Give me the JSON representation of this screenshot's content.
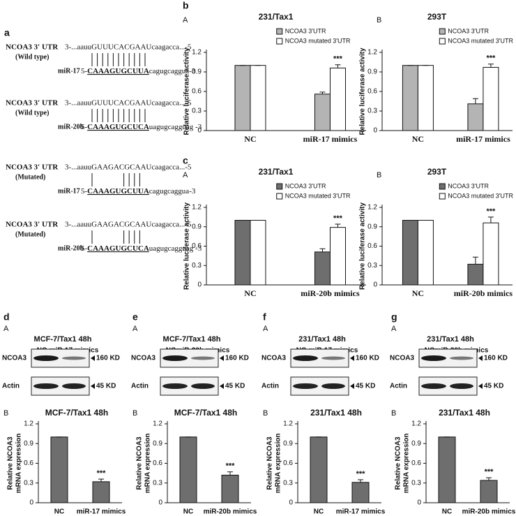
{
  "sequences": {
    "panel": "a",
    "items": [
      {
        "utr": "NCOA3 3' UTR",
        "variant": "(Wild type)",
        "target": "3-...aauuGUUUCACGAAUcaagacca...-5",
        "mirna": "miR-17",
        "seq_start": "5-",
        "seq_core": "CAAAGUGCUUA",
        "seq_end": "cagugcaggua-3"
      },
      {
        "utr": "NCOA3 3' UTR",
        "variant": "(Wild type)",
        "target": "3-...aauuGUUUCACGAAUcaagacca...-5",
        "mirna": "miR-20b",
        "seq_start": "5-",
        "seq_core": "CAAAGUGCUCA",
        "seq_end": "uagugcagguag -3"
      },
      {
        "utr": "NCOA3 3' UTR",
        "variant": "(Mutated)",
        "target": "3-...aauuGAAGACGCAAUcaagacca...-5",
        "mirna": "miR-17",
        "seq_start": "5-",
        "seq_core": "CAAAGUGCUUA",
        "seq_end": "cagugcaggua-3"
      },
      {
        "utr": "NCOA3 3' UTR",
        "variant": "(Mutated)",
        "target": "3-...aauuGAAGACGCAAUcaagacca...-5",
        "mirna": "miR-20b",
        "seq_start": "5-",
        "seq_core": "CAAAGUGCUCA",
        "seq_end": "uagugcagguag -3"
      }
    ]
  },
  "blots": [
    {
      "panel": "d",
      "sub": "A",
      "title": "MCF-7/Tax1 48h",
      "lanes": [
        "NC",
        "miR-17 mimics"
      ],
      "rows": [
        {
          "name": "NCOA3",
          "size": "160 KD"
        },
        {
          "name": "Actin",
          "size": "45 KD"
        }
      ]
    },
    {
      "panel": "e",
      "sub": "A",
      "title": "MCF-7/Tax1 48h",
      "lanes": [
        "NC",
        "miR-20b mimics"
      ],
      "rows": [
        {
          "name": "NCOA3",
          "size": "160 KD"
        },
        {
          "name": "Actin",
          "size": "45 KD"
        }
      ]
    },
    {
      "panel": "f",
      "sub": "A",
      "title": "231/Tax1 48h",
      "lanes": [
        "NC",
        "miR-17 mimics"
      ],
      "rows": [
        {
          "name": "NCOA3",
          "size": "160 KD"
        },
        {
          "name": "Actin",
          "size": "45 KD"
        }
      ]
    },
    {
      "panel": "g",
      "sub": "A",
      "title": "231/Tax1 48h",
      "lanes": [
        "NC",
        "miR-20b mimics"
      ],
      "rows": [
        {
          "name": "NCOA3",
          "size": "160 KD"
        },
        {
          "name": "Actin",
          "size": "45 KD"
        }
      ]
    }
  ],
  "chart_data": [
    {
      "type": "bar",
      "panel": "b",
      "sub": "A",
      "title": "231/Tax1",
      "ylabel": [
        "Relative  luciferase activity"
      ],
      "categories": [
        "NC",
        "miR-17 mimics"
      ],
      "series": [
        {
          "name": "NCOA3 3'UTR",
          "color": "#b4b4b4",
          "values": [
            1,
            0.56
          ],
          "errors": [
            0,
            0.03
          ]
        },
        {
          "name": "NCOA3 mutated 3'UTR",
          "color": "#ffffff",
          "values": [
            1,
            0.96
          ],
          "errors": [
            0,
            0.05
          ]
        }
      ],
      "annotation": "***",
      "ylim": [
        0,
        1.2
      ],
      "yticks": [
        0,
        0.3,
        0.6,
        0.9,
        1.2
      ]
    },
    {
      "type": "bar",
      "sub": "B",
      "title": "293T",
      "ylabel": [
        "Relative  luciferase activity"
      ],
      "categories": [
        "NC",
        "miR-17 mimics"
      ],
      "series": [
        {
          "name": "NCOA3 3'UTR",
          "color": "#b4b4b4",
          "values": [
            1,
            0.41
          ],
          "errors": [
            0,
            0.08
          ]
        },
        {
          "name": "NCOA3 mutated 3'UTR",
          "color": "#ffffff",
          "values": [
            1,
            0.97
          ],
          "errors": [
            0,
            0.05
          ]
        }
      ],
      "annotation": "***",
      "ylim": [
        0,
        1.2
      ],
      "yticks": [
        0,
        0.3,
        0.6,
        0.9,
        1.2
      ]
    },
    {
      "type": "bar",
      "panel": "c",
      "sub": "A",
      "title": "231/Tax1",
      "ylabel": [
        "Relative  luciferase activity"
      ],
      "categories": [
        "NC",
        "miR-20b mimics"
      ],
      "series": [
        {
          "name": "NCOA3 3'UTR",
          "color": "#6e6e6e",
          "values": [
            1,
            0.51
          ],
          "errors": [
            0,
            0.05
          ]
        },
        {
          "name": "NCOA3 mutated 3'UTR",
          "color": "#ffffff",
          "values": [
            1,
            0.89
          ],
          "errors": [
            0,
            0.05
          ]
        }
      ],
      "annotation": "***",
      "ylim": [
        0,
        1.2
      ],
      "yticks": [
        0,
        0.3,
        0.6,
        0.9,
        1.2
      ]
    },
    {
      "type": "bar",
      "sub": "B",
      "title": "293T",
      "ylabel": [
        "Relative  luciferase activity"
      ],
      "categories": [
        "NC",
        "miR-20b mimics"
      ],
      "series": [
        {
          "name": "NCOA3 3'UTR",
          "color": "#6e6e6e",
          "values": [
            1,
            0.32
          ],
          "errors": [
            0,
            0.11
          ]
        },
        {
          "name": "NCOA3 mutated 3'UTR",
          "color": "#ffffff",
          "values": [
            1,
            0.96
          ],
          "errors": [
            0,
            0.09
          ]
        }
      ],
      "annotation": "***",
      "ylim": [
        0,
        1.2
      ],
      "yticks": [
        0,
        0.3,
        0.6,
        0.9,
        1.2
      ]
    },
    {
      "type": "bar",
      "sub": "B",
      "title": "MCF-7/Tax1 48h",
      "ylabel": [
        "Relative NCOA3",
        "mRNA expression"
      ],
      "categories": [
        "NC",
        "miR-17 mimics"
      ],
      "series": [
        {
          "color": "#6e6e6e",
          "values": [
            1,
            0.32
          ],
          "errors": [
            0,
            0.04
          ]
        }
      ],
      "annotation": "***",
      "ylim": [
        0,
        1.2
      ],
      "yticks": [
        0,
        0.3,
        0.6,
        0.9,
        1.2
      ]
    },
    {
      "type": "bar",
      "sub": "B",
      "title": "MCF-7/Tax1 48h",
      "ylabel": [
        "Relative NCOA3",
        "mRNA expression"
      ],
      "categories": [
        "NC",
        "miR-20b mimics"
      ],
      "series": [
        {
          "color": "#6e6e6e",
          "values": [
            1,
            0.42
          ],
          "errors": [
            0,
            0.05
          ]
        }
      ],
      "annotation": "***",
      "ylim": [
        0,
        1.2
      ],
      "yticks": [
        0,
        0.3,
        0.6,
        0.9,
        1.2
      ]
    },
    {
      "type": "bar",
      "sub": "B",
      "title": "231/Tax1 48h",
      "ylabel": [
        "Relative NCOA3",
        "mRNA expression"
      ],
      "categories": [
        "NC",
        "miR-17 mimics"
      ],
      "series": [
        {
          "color": "#6e6e6e",
          "values": [
            1,
            0.31
          ],
          "errors": [
            0,
            0.04
          ]
        }
      ],
      "annotation": "***",
      "ylim": [
        0,
        1.2
      ],
      "yticks": [
        0,
        0.3,
        0.6,
        0.9,
        1.2
      ]
    },
    {
      "type": "bar",
      "sub": "B",
      "title": "231/Tax1 48h",
      "ylabel": [
        "Relative NCOA3",
        "mRNA expression"
      ],
      "categories": [
        "NC",
        "miR-20b mimics"
      ],
      "series": [
        {
          "color": "#6e6e6e",
          "values": [
            1,
            0.34
          ],
          "errors": [
            0,
            0.04
          ]
        }
      ],
      "annotation": "***",
      "ylim": [
        0,
        1.2
      ],
      "yticks": [
        0,
        0.3,
        0.6,
        0.9,
        1.2
      ]
    }
  ]
}
